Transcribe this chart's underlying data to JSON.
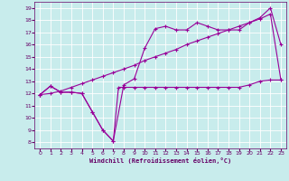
{
  "xlabel": "Windchill (Refroidissement éolien,°C)",
  "bg_color": "#c8ecec",
  "line_color": "#990099",
  "grid_color": "#ffffff",
  "text_color": "#660066",
  "xlim": [
    -0.5,
    23.5
  ],
  "ylim": [
    7.5,
    19.5
  ],
  "xticks": [
    0,
    1,
    2,
    3,
    4,
    5,
    6,
    7,
    8,
    9,
    10,
    11,
    12,
    13,
    14,
    15,
    16,
    17,
    18,
    19,
    20,
    21,
    22,
    23
  ],
  "yticks": [
    8,
    9,
    10,
    11,
    12,
    13,
    14,
    15,
    16,
    17,
    18,
    19
  ],
  "line1_x": [
    0,
    1,
    2,
    3,
    4,
    5,
    6,
    7,
    7.5,
    8,
    9,
    10,
    11,
    12,
    13,
    14,
    15,
    16,
    17,
    18,
    19,
    20,
    21,
    22,
    23
  ],
  "line1_y": [
    11.9,
    12.6,
    12.1,
    12.1,
    12.0,
    10.5,
    9.0,
    8.1,
    12.5,
    12.5,
    12.5,
    12.5,
    12.5,
    12.5,
    12.5,
    12.5,
    12.5,
    12.5,
    12.5,
    12.5,
    12.5,
    12.7,
    13.0,
    13.1,
    13.1
  ],
  "line2_x": [
    0,
    1,
    2,
    3,
    4,
    5,
    6,
    7,
    8,
    9,
    10,
    11,
    12,
    13,
    14,
    15,
    16,
    17,
    18,
    19,
    20,
    21,
    22,
    23
  ],
  "line2_y": [
    11.9,
    12.6,
    12.1,
    12.1,
    12.0,
    10.5,
    9.0,
    8.1,
    12.7,
    13.2,
    15.7,
    17.3,
    17.5,
    17.2,
    17.2,
    17.8,
    17.5,
    17.2,
    17.2,
    17.2,
    17.8,
    18.2,
    19.0,
    16.0
  ],
  "line3_x": [
    0,
    1,
    2,
    3,
    4,
    5,
    6,
    7,
    8,
    9,
    10,
    11,
    12,
    13,
    14,
    15,
    16,
    17,
    18,
    19,
    20,
    21,
    22,
    23
  ],
  "line3_y": [
    11.9,
    12.0,
    12.2,
    12.5,
    12.8,
    13.1,
    13.4,
    13.7,
    14.0,
    14.3,
    14.7,
    15.0,
    15.3,
    15.6,
    16.0,
    16.3,
    16.6,
    16.9,
    17.2,
    17.5,
    17.8,
    18.1,
    18.5,
    13.1
  ],
  "figsize": [
    3.2,
    2.0
  ],
  "dpi": 100
}
